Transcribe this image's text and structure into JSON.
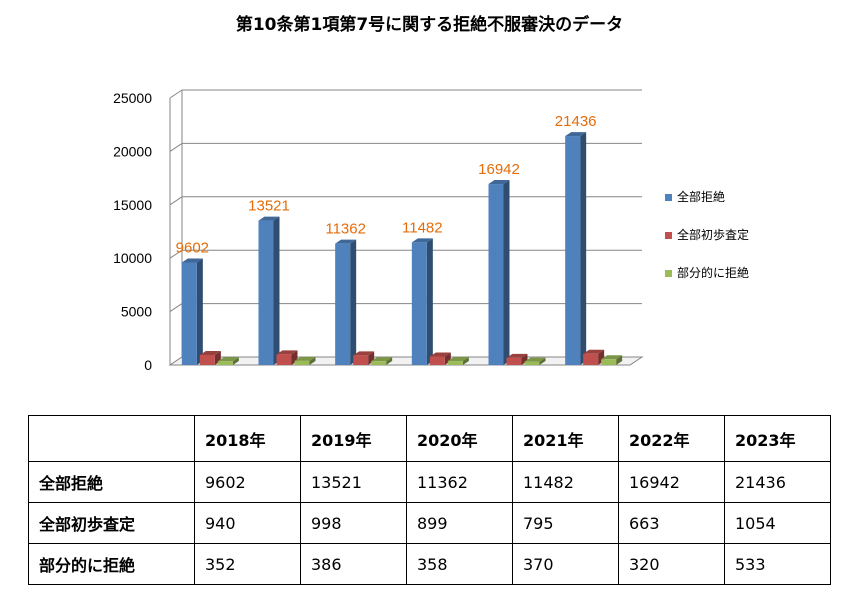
{
  "chart_data": {
    "type": "bar",
    "title": "第10条第1項第7号に関する拒絶不服審決のデータ",
    "categories": [
      "2018年",
      "2019年",
      "2020年",
      "2021年",
      "2022年",
      "2023年"
    ],
    "series": [
      {
        "name": "全部拒絶",
        "color": "#4f81bd",
        "values": [
          9602,
          13521,
          11362,
          11482,
          16942,
          21436
        ],
        "labels_shown": true
      },
      {
        "name": "全部初歩査定",
        "color": "#c0504d",
        "values": [
          940,
          998,
          899,
          795,
          663,
          1054
        ],
        "labels_shown": false
      },
      {
        "name": "部分的に拒絶",
        "color": "#9bbb59",
        "values": [
          352,
          386,
          358,
          370,
          320,
          533
        ],
        "labels_shown": false
      }
    ],
    "yticks": [
      0,
      5000,
      10000,
      15000,
      20000,
      25000
    ],
    "ylim": [
      0,
      25000
    ],
    "grid": true,
    "legend_position": "right",
    "data_label_color": "#e46c0a"
  },
  "table": {
    "headers": [
      "",
      "2018年",
      "2019年",
      "2020年",
      "2021年",
      "2022年",
      "2023年"
    ],
    "rows": [
      {
        "label": "全部拒絶",
        "values": [
          "9602",
          "13521",
          "11362",
          "11482",
          "16942",
          "21436"
        ]
      },
      {
        "label": "全部初歩査定",
        "values": [
          "940",
          "998",
          "899",
          "795",
          "663",
          "1054"
        ]
      },
      {
        "label": "部分的に拒絶",
        "values": [
          "352",
          "386",
          "358",
          "370",
          "320",
          "533"
        ]
      }
    ]
  }
}
